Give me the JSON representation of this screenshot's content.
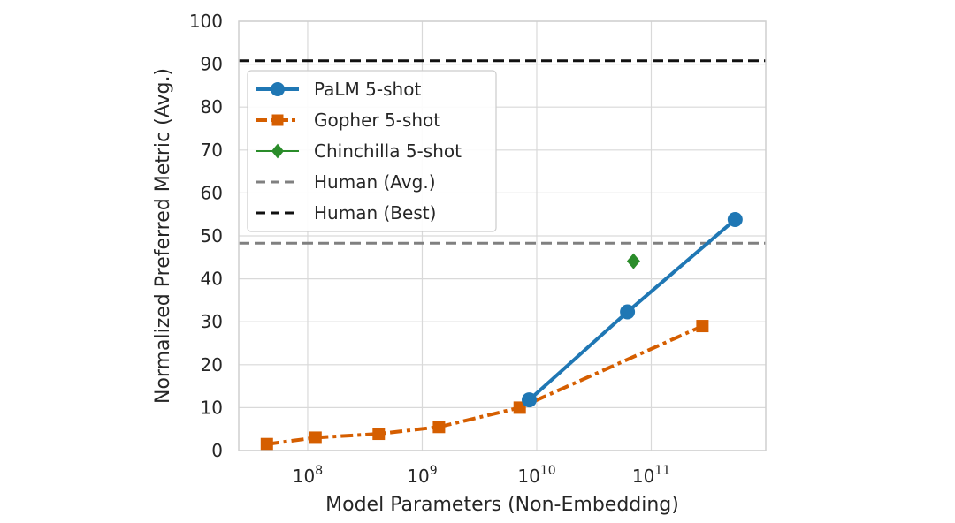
{
  "chart_data": {
    "type": "line",
    "x_scale": "log",
    "x_ticks": [
      {
        "value": 100000000,
        "base": "10",
        "exp": "8"
      },
      {
        "value": 1000000000,
        "base": "10",
        "exp": "9"
      },
      {
        "value": 10000000000,
        "base": "10",
        "exp": "10"
      },
      {
        "value": 100000000000,
        "base": "10",
        "exp": "11"
      }
    ],
    "xlim": [
      25000000,
      1000000000000
    ],
    "ylim": [
      0,
      100
    ],
    "y_ticks": [
      "0",
      "10",
      "20",
      "30",
      "40",
      "50",
      "60",
      "70",
      "80",
      "90",
      "100"
    ],
    "grid": true,
    "legend_position": "upper-left",
    "xlabel": "Model Parameters (Non-Embedding)",
    "ylabel": "Normalized Preferred Metric (Avg.)",
    "series": [
      {
        "name": "PaLM 5-shot",
        "color": "#1f77b4",
        "marker": "circle",
        "line_style": "solid",
        "x": [
          8600000000,
          62000000000,
          540000000000
        ],
        "y": [
          11.8,
          32.3,
          53.8
        ]
      },
      {
        "name": "Gopher 5-shot",
        "color": "#d55e00",
        "marker": "square",
        "line_style": "dashdot",
        "x": [
          44000000,
          117000000,
          417000000,
          1400000000,
          7100000000,
          280000000000
        ],
        "y": [
          1.5,
          3.0,
          3.9,
          5.5,
          10.0,
          29.0
        ]
      },
      {
        "name": "Chinchilla 5-shot",
        "color": "#2a8c2a",
        "marker": "diamond",
        "line_style": "none",
        "x": [
          70000000000
        ],
        "y": [
          44.1
        ]
      }
    ],
    "reference_lines": [
      {
        "name": "Human (Avg.)",
        "y": 48.3,
        "color": "#808080",
        "line_style": "dashed"
      },
      {
        "name": "Human (Best)",
        "y": 90.8,
        "color": "#111111",
        "line_style": "dashed"
      }
    ]
  }
}
